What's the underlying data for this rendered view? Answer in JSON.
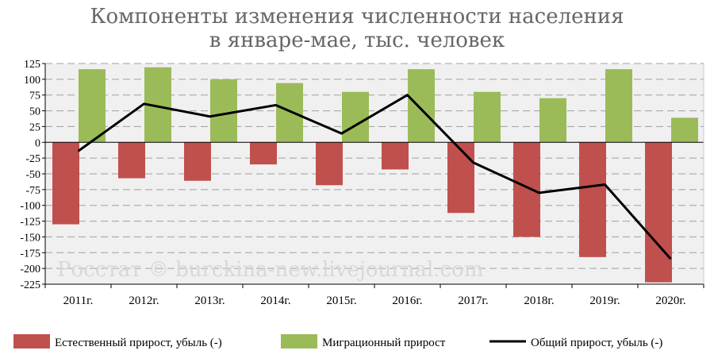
{
  "title_lines": [
    "Компоненты изменения численности населения",
    "в январе-мае, тыс. человек"
  ],
  "watermark": "Росстат © burckina-new.livejournal.com",
  "colors": {
    "natural": "#c0504d",
    "migration": "#9bbb59",
    "total": "#000000",
    "plot_bg": "#f0f0f0",
    "grid": "#a0a0a0"
  },
  "chart_data": {
    "type": "bar",
    "title": "Компоненты изменения численности населения в январе-мае, тыс. человек",
    "categories": [
      "2011г.",
      "2012г.",
      "2013г.",
      "2014г.",
      "2015г.",
      "2016г.",
      "2017г.",
      "2018г.",
      "2019г.",
      "2020г."
    ],
    "ylim": [
      -225,
      125
    ],
    "yticks": [
      125,
      100,
      75,
      50,
      25,
      0,
      -25,
      -50,
      -75,
      -100,
      -125,
      -150,
      -175,
      -200,
      -225
    ],
    "grid": true,
    "legend_position": "bottom",
    "series": [
      {
        "name": "Естественный прирост, убыль (-)",
        "kind": "bar",
        "values": [
          -130,
          -57,
          -61,
          -35,
          -68,
          -43,
          -112,
          -150,
          -182,
          -222
        ]
      },
      {
        "name": "Миграционный прирост",
        "kind": "bar",
        "values": [
          116,
          119,
          100,
          94,
          80,
          116,
          80,
          70,
          116,
          39
        ]
      },
      {
        "name": "Общий прирост, убыль (-)",
        "kind": "line",
        "values": [
          -14,
          61,
          41,
          59,
          14,
          75,
          -32,
          -80,
          -67,
          -185
        ]
      }
    ]
  }
}
